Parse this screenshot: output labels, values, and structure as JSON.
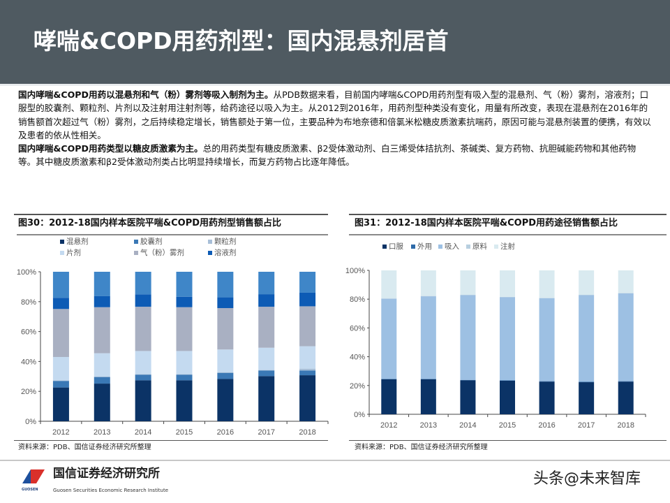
{
  "header": {
    "title": "哮喘&COPD用药剂型：国内混悬剂居首"
  },
  "body": {
    "p1_bold": "国内哮喘&COPD用药以混悬剂和气（粉）雾剂等吸入制剂为主。",
    "p1_text": "从PDB数据来看，目前国内哮喘&COPD用药剂型有吸入型的混悬剂、气（粉）雾剂，溶液剂；口服型的胶囊剂、颗粒剂、片剂以及注射用注射剂等，给药途径以吸入为主。从2012到2016年，用药剂型种类没有变化，用量有所改变，表现在混悬剂在2016年的销售额首次超过气（粉）雾剂，之后持续稳定增长，销售额处于第一位，主要品种为布地奈德和倍氯米松糖皮质激素抗喘药，原因可能与混悬剂装置的便携，有效以及患者的依从性相关。",
    "p2_bold": "国内哮喘&COPD用药类型以糖皮质激素为主。",
    "p2_text": "总的用药类型有糖皮质激素、β2受体激动剂、白三烯受体拮抗剂、茶碱类、复方药物、抗胆碱能药物和其他药物等。其中糖皮质激素和β2受体激动剂类占比明显持续增长，而复方药物占比逐年降低。"
  },
  "chart_data": [
    {
      "type": "bar",
      "stacked": true,
      "title": "图30：2012-18国内样本医院平喘&COPD用药剂型销售额占比",
      "categories": [
        "2012",
        "2013",
        "2014",
        "2015",
        "2016",
        "2017",
        "2018"
      ],
      "ylim": [
        0,
        100
      ],
      "yticks": [
        "0%",
        "20%",
        "40%",
        "60%",
        "80%",
        "100%"
      ],
      "legend_position": "top",
      "series": [
        {
          "name": "混悬剂",
          "color": "#0b3366",
          "values": [
            22.6,
            25.2,
            27.4,
            27.4,
            28.3,
            30.2,
            30.8
          ]
        },
        {
          "name": "胶囊剂",
          "color": "#3a78b5",
          "values": [
            4.4,
            4.4,
            3.8,
            3.8,
            4.1,
            3.8,
            3.2
          ]
        },
        {
          "name": "颗粒剂",
          "color": "#a8bfd8",
          "values": [
            0.3,
            0.3,
            0.3,
            0.3,
            0.3,
            0.3,
            1.2
          ]
        },
        {
          "name": "片剂",
          "color": "#c4daf0",
          "values": [
            15.7,
            15.6,
            15.5,
            15.5,
            15.3,
            14.9,
            15.0
          ]
        },
        {
          "name": "气（粉）雾剂",
          "color": "#a9b0c2",
          "values": [
            32.1,
            30.8,
            29.6,
            29.3,
            27.7,
            27.4,
            26.7
          ]
        },
        {
          "name": "溶液剂",
          "color": "#0d5bb5",
          "values": [
            7.5,
            7.5,
            8.3,
            7.0,
            7.2,
            8.4,
            9.1
          ]
        },
        {
          "color": "#3f86c8",
          "values": [
            17.4,
            16.2,
            15.1,
            16.7,
            17.1,
            15.0,
            14.0
          ]
        }
      ],
      "source": "资料来源：PDB、国信证券经济研究所整理"
    },
    {
      "type": "bar",
      "stacked": true,
      "title": "图31：2012-18国内样本医院平喘&COPD用药途径销售额占比",
      "categories": [
        "2012",
        "2013",
        "2014",
        "2015",
        "2016",
        "2017",
        "2018"
      ],
      "ylim": [
        0,
        100
      ],
      "yticks": [
        "0%",
        "20%",
        "40%",
        "60%",
        "80%",
        "100%"
      ],
      "legend_position": "top",
      "series": [
        {
          "name": "口服",
          "color": "#0b3366",
          "values": [
            24.3,
            24.3,
            23.6,
            23.3,
            22.7,
            22.3,
            22.7
          ]
        },
        {
          "name": "外用",
          "color": "#2e6aa8",
          "values": [
            0.3,
            0.3,
            0.3,
            0.3,
            0.3,
            0.3,
            0.3
          ]
        },
        {
          "name": "吸入",
          "color": "#9dc0e3",
          "values": [
            55.7,
            57.4,
            58.9,
            57.8,
            57.7,
            60.2,
            61.0
          ]
        },
        {
          "name": "原料",
          "color": "#b8cfe0",
          "values": [
            0.2,
            0.2,
            0.2,
            0.2,
            0.2,
            0.2,
            0.2
          ]
        },
        {
          "name": "注射",
          "color": "#d9eaf0",
          "values": [
            19.5,
            17.8,
            17.0,
            18.4,
            19.1,
            17.0,
            15.8
          ]
        }
      ],
      "source": "资料来源：PDB、国信证券经济研究所整理"
    }
  ],
  "footer": {
    "logo_name": "国信证券经济研究所",
    "logo_en": "Guosen Securities Economic Research Institute",
    "logo_mark": "GUOSEN",
    "watermark": "头条@未来智库"
  }
}
